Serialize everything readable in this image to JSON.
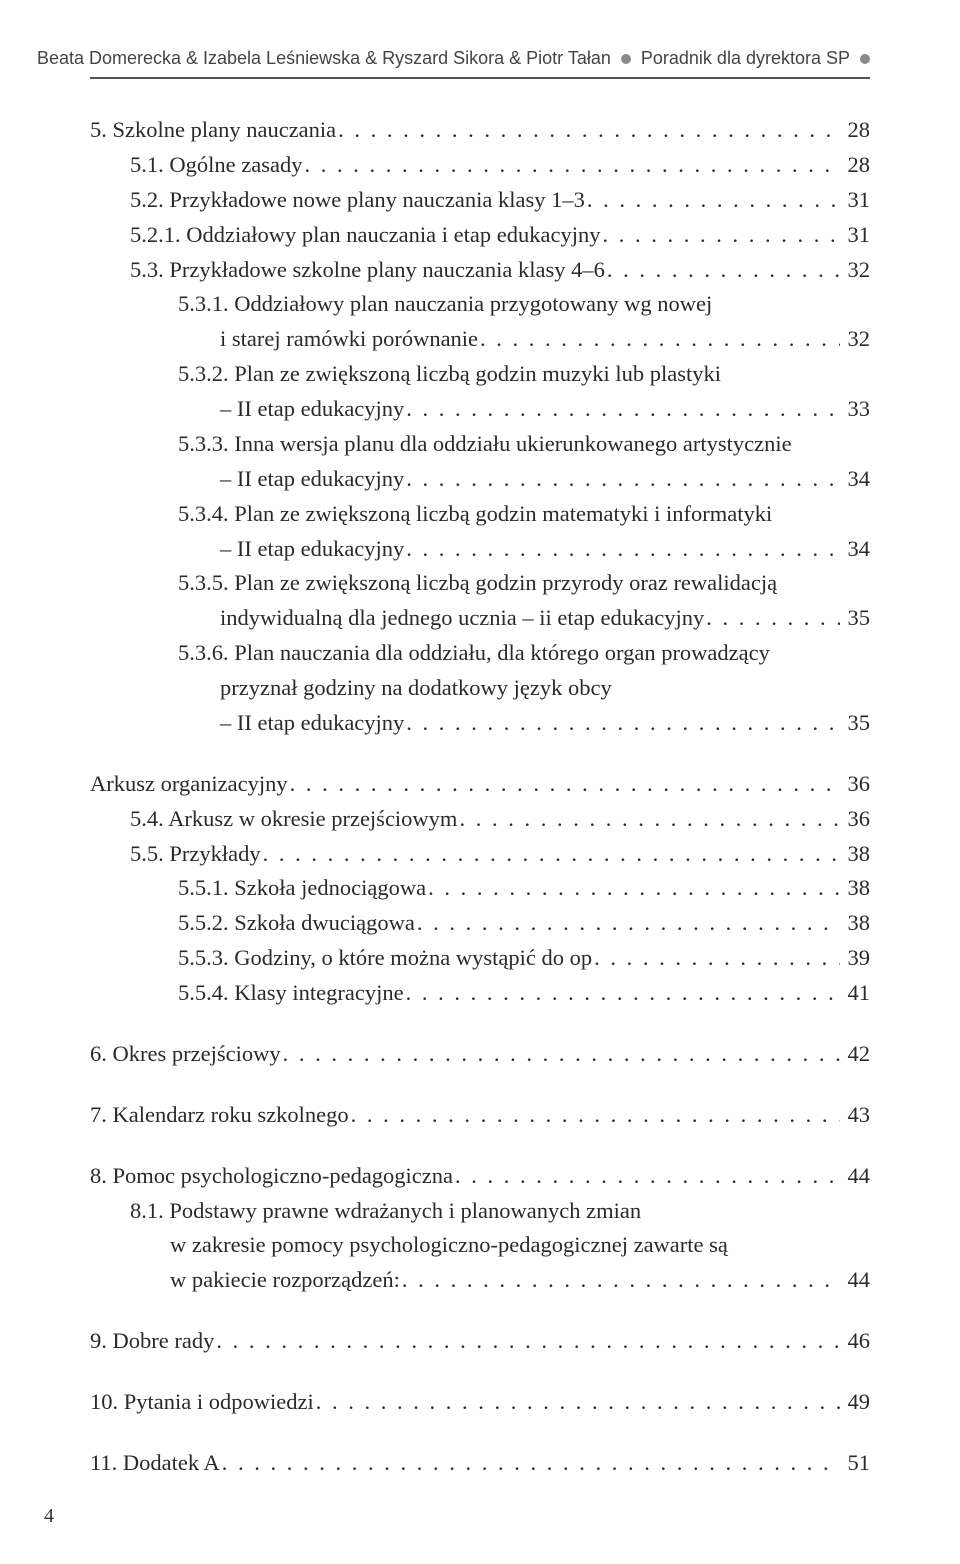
{
  "header": {
    "authors": "Beata Domerecka & Izabela Leśniewska & Ryszard Sikora & Piotr Tałan",
    "doc_title": "Poradnik dla dyrektora SP"
  },
  "page_number": "4",
  "colors": {
    "text": "#2a2a2a",
    "rule": "#555555",
    "dot": "#8a8a8a",
    "background": "#ffffff"
  },
  "typography": {
    "body_fontsize_pt": 17,
    "header_fontsize_pt": 13,
    "body_family": "serif",
    "header_family": "sans-serif",
    "header_weight": "300"
  },
  "toc": [
    {
      "indent": 0,
      "lines": [
        "5. Szkolne plany nauczania"
      ],
      "page": "28"
    },
    {
      "indent": 1,
      "lines": [
        "5.1. Ogólne zasady"
      ],
      "page": "28"
    },
    {
      "indent": 1,
      "lines": [
        "5.2. Przykładowe nowe plany nauczania klasy 1–3"
      ],
      "page": "31"
    },
    {
      "indent": 1,
      "lines": [
        "5.2.1. Oddziałowy plan nauczania i etap edukacyjny"
      ],
      "page": "31"
    },
    {
      "indent": 1,
      "lines": [
        "5.3. Przykładowe szkolne plany nauczania klasy 4–6"
      ],
      "page": "32"
    },
    {
      "indent": 2,
      "lines": [
        "5.3.1. Oddziałowy plan nauczania przygotowany wg nowej",
        "i starej ramówki porównanie"
      ],
      "page": "32"
    },
    {
      "indent": 2,
      "lines": [
        "5.3.2. Plan ze zwiększoną liczbą godzin muzyki lub plastyki",
        "– II etap edukacyjny"
      ],
      "page": "33"
    },
    {
      "indent": 2,
      "lines": [
        "5.3.3. Inna wersja planu dla oddziału ukierunkowanego artystycznie",
        "– II etap edukacyjny"
      ],
      "page": "34"
    },
    {
      "indent": 2,
      "lines": [
        "5.3.4. Plan ze zwiększoną liczbą godzin matematyki i informatyki",
        "– II etap edukacyjny"
      ],
      "page": "34"
    },
    {
      "indent": 2,
      "lines": [
        "5.3.5. Plan ze zwiększoną liczbą godzin przyrody oraz rewalidacją",
        "indywidualną dla jednego ucznia – ii etap edukacyjny"
      ],
      "page": "35"
    },
    {
      "indent": 2,
      "lines": [
        "5.3.6. Plan nauczania dla oddziału, dla którego organ prowadzący",
        "przyznał godziny na dodatkowy język obcy",
        "– II etap edukacyjny"
      ],
      "page": "35"
    },
    {
      "gap": true
    },
    {
      "indent": 0,
      "lines": [
        "Arkusz organizacyjny"
      ],
      "page": "36"
    },
    {
      "indent": 1,
      "lines": [
        "5.4. Arkusz w okresie przejściowym"
      ],
      "page": "36"
    },
    {
      "indent": 1,
      "lines": [
        "5.5. Przykłady"
      ],
      "page": "38"
    },
    {
      "indent": 2,
      "lines": [
        "5.5.1. Szkoła jednociągowa"
      ],
      "page": "38"
    },
    {
      "indent": 2,
      "lines": [
        "5.5.2. Szkoła dwuciągowa"
      ],
      "page": "38"
    },
    {
      "indent": 2,
      "lines": [
        "5.5.3. Godziny, o które można wystąpić do op"
      ],
      "page": "39"
    },
    {
      "indent": 2,
      "lines": [
        "5.5.4. Klasy integracyjne"
      ],
      "page": "41"
    },
    {
      "gap": true
    },
    {
      "indent": 0,
      "lines": [
        "6. Okres przejściowy"
      ],
      "page": "42"
    },
    {
      "gap": true
    },
    {
      "indent": 0,
      "lines": [
        "7. Kalendarz roku szkolnego"
      ],
      "page": "43"
    },
    {
      "gap": true
    },
    {
      "indent": 0,
      "lines": [
        "8. Pomoc psychologiczno-pedagogiczna"
      ],
      "page": "44"
    },
    {
      "indent": 1,
      "lines": [
        "8.1. Podstawy prawne wdrażanych i planowanych zmian",
        "w zakresie pomocy psychologiczno-pedagogicznej zawarte są",
        "w pakiecie rozporządzeń:"
      ],
      "page": "44"
    },
    {
      "gap": true
    },
    {
      "indent": 0,
      "lines": [
        "9. Dobre rady"
      ],
      "page": "46"
    },
    {
      "gap": true
    },
    {
      "indent": 0,
      "lines": [
        "10. Pytania i odpowiedzi"
      ],
      "page": "49"
    },
    {
      "gap": true
    },
    {
      "indent": 0,
      "lines": [
        "11. Dodatek A"
      ],
      "page": "51"
    }
  ]
}
